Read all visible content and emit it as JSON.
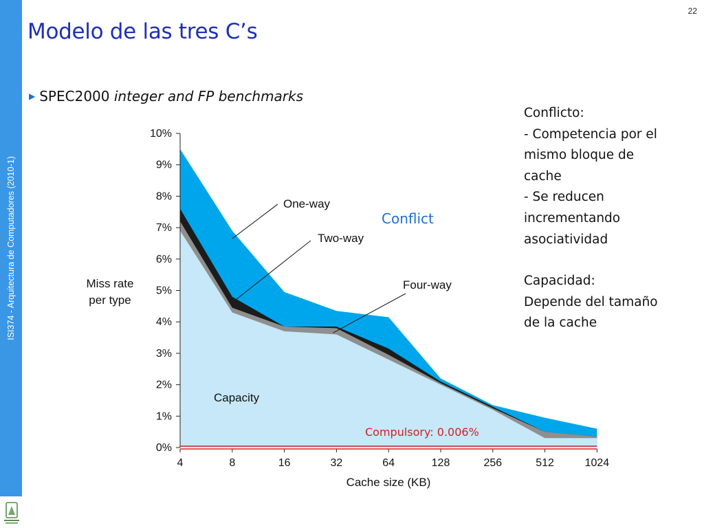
{
  "slide": {
    "sidebar_text": "ISI374 - Arquitectura de Computadores (2010-1)",
    "slide_number": "22",
    "title": "Modelo de las tres C’s",
    "bullet_normal": "SPEC2000",
    "bullet_italic": "integer and FP benchmarks",
    "notes": [
      "Conflicto:",
      "- Competencia por el",
      "mismo bloque de",
      "cache",
      "- Se reducen",
      "incrementando",
      "asociatividad",
      "",
      "Capacidad:",
      "Depende del tamaño",
      "de la cache"
    ],
    "logo_text": "UNIVERSIDAD DE ANTIOQUIA",
    "colors": {
      "accent_blue": "#3a97e6",
      "title_blue": "#1f2fb8",
      "conflict_fill": "#00a6ec",
      "capacity_fill": "#c6e8f8",
      "two_way_fill": "#1c1c1c",
      "four_way_fill": "#8f8f8f",
      "compulsory_red": "#d42020"
    }
  },
  "chart_data": {
    "type": "area",
    "xlabel": "Cache size (KB)",
    "ylabel": "Miss rate per type",
    "categories": [
      "4",
      "8",
      "16",
      "32",
      "64",
      "128",
      "256",
      "512",
      "1024"
    ],
    "ylim": [
      0,
      10
    ],
    "yticks": [
      "0%",
      "1%",
      "2%",
      "3%",
      "4%",
      "5%",
      "6%",
      "7%",
      "8%",
      "9%",
      "10%"
    ],
    "series": [
      {
        "name": "Capacity",
        "values": [
          6.9,
          4.3,
          3.7,
          3.6,
          2.8,
          2.0,
          1.2,
          0.3,
          0.3
        ]
      },
      {
        "name": "Four-way",
        "values": [
          7.2,
          4.45,
          3.85,
          3.8,
          2.95,
          2.05,
          1.25,
          0.5,
          0.35
        ]
      },
      {
        "name": "Two-way",
        "values": [
          7.6,
          4.8,
          3.85,
          3.85,
          3.15,
          2.1,
          1.3,
          0.5,
          0.35
        ]
      },
      {
        "name": "One-way",
        "values": [
          9.5,
          6.9,
          4.95,
          4.35,
          4.15,
          2.2,
          1.35,
          0.95,
          0.6
        ]
      }
    ],
    "annotations": {
      "conflict": "Conflict",
      "compulsory": "Compulsory: 0.006%"
    }
  }
}
